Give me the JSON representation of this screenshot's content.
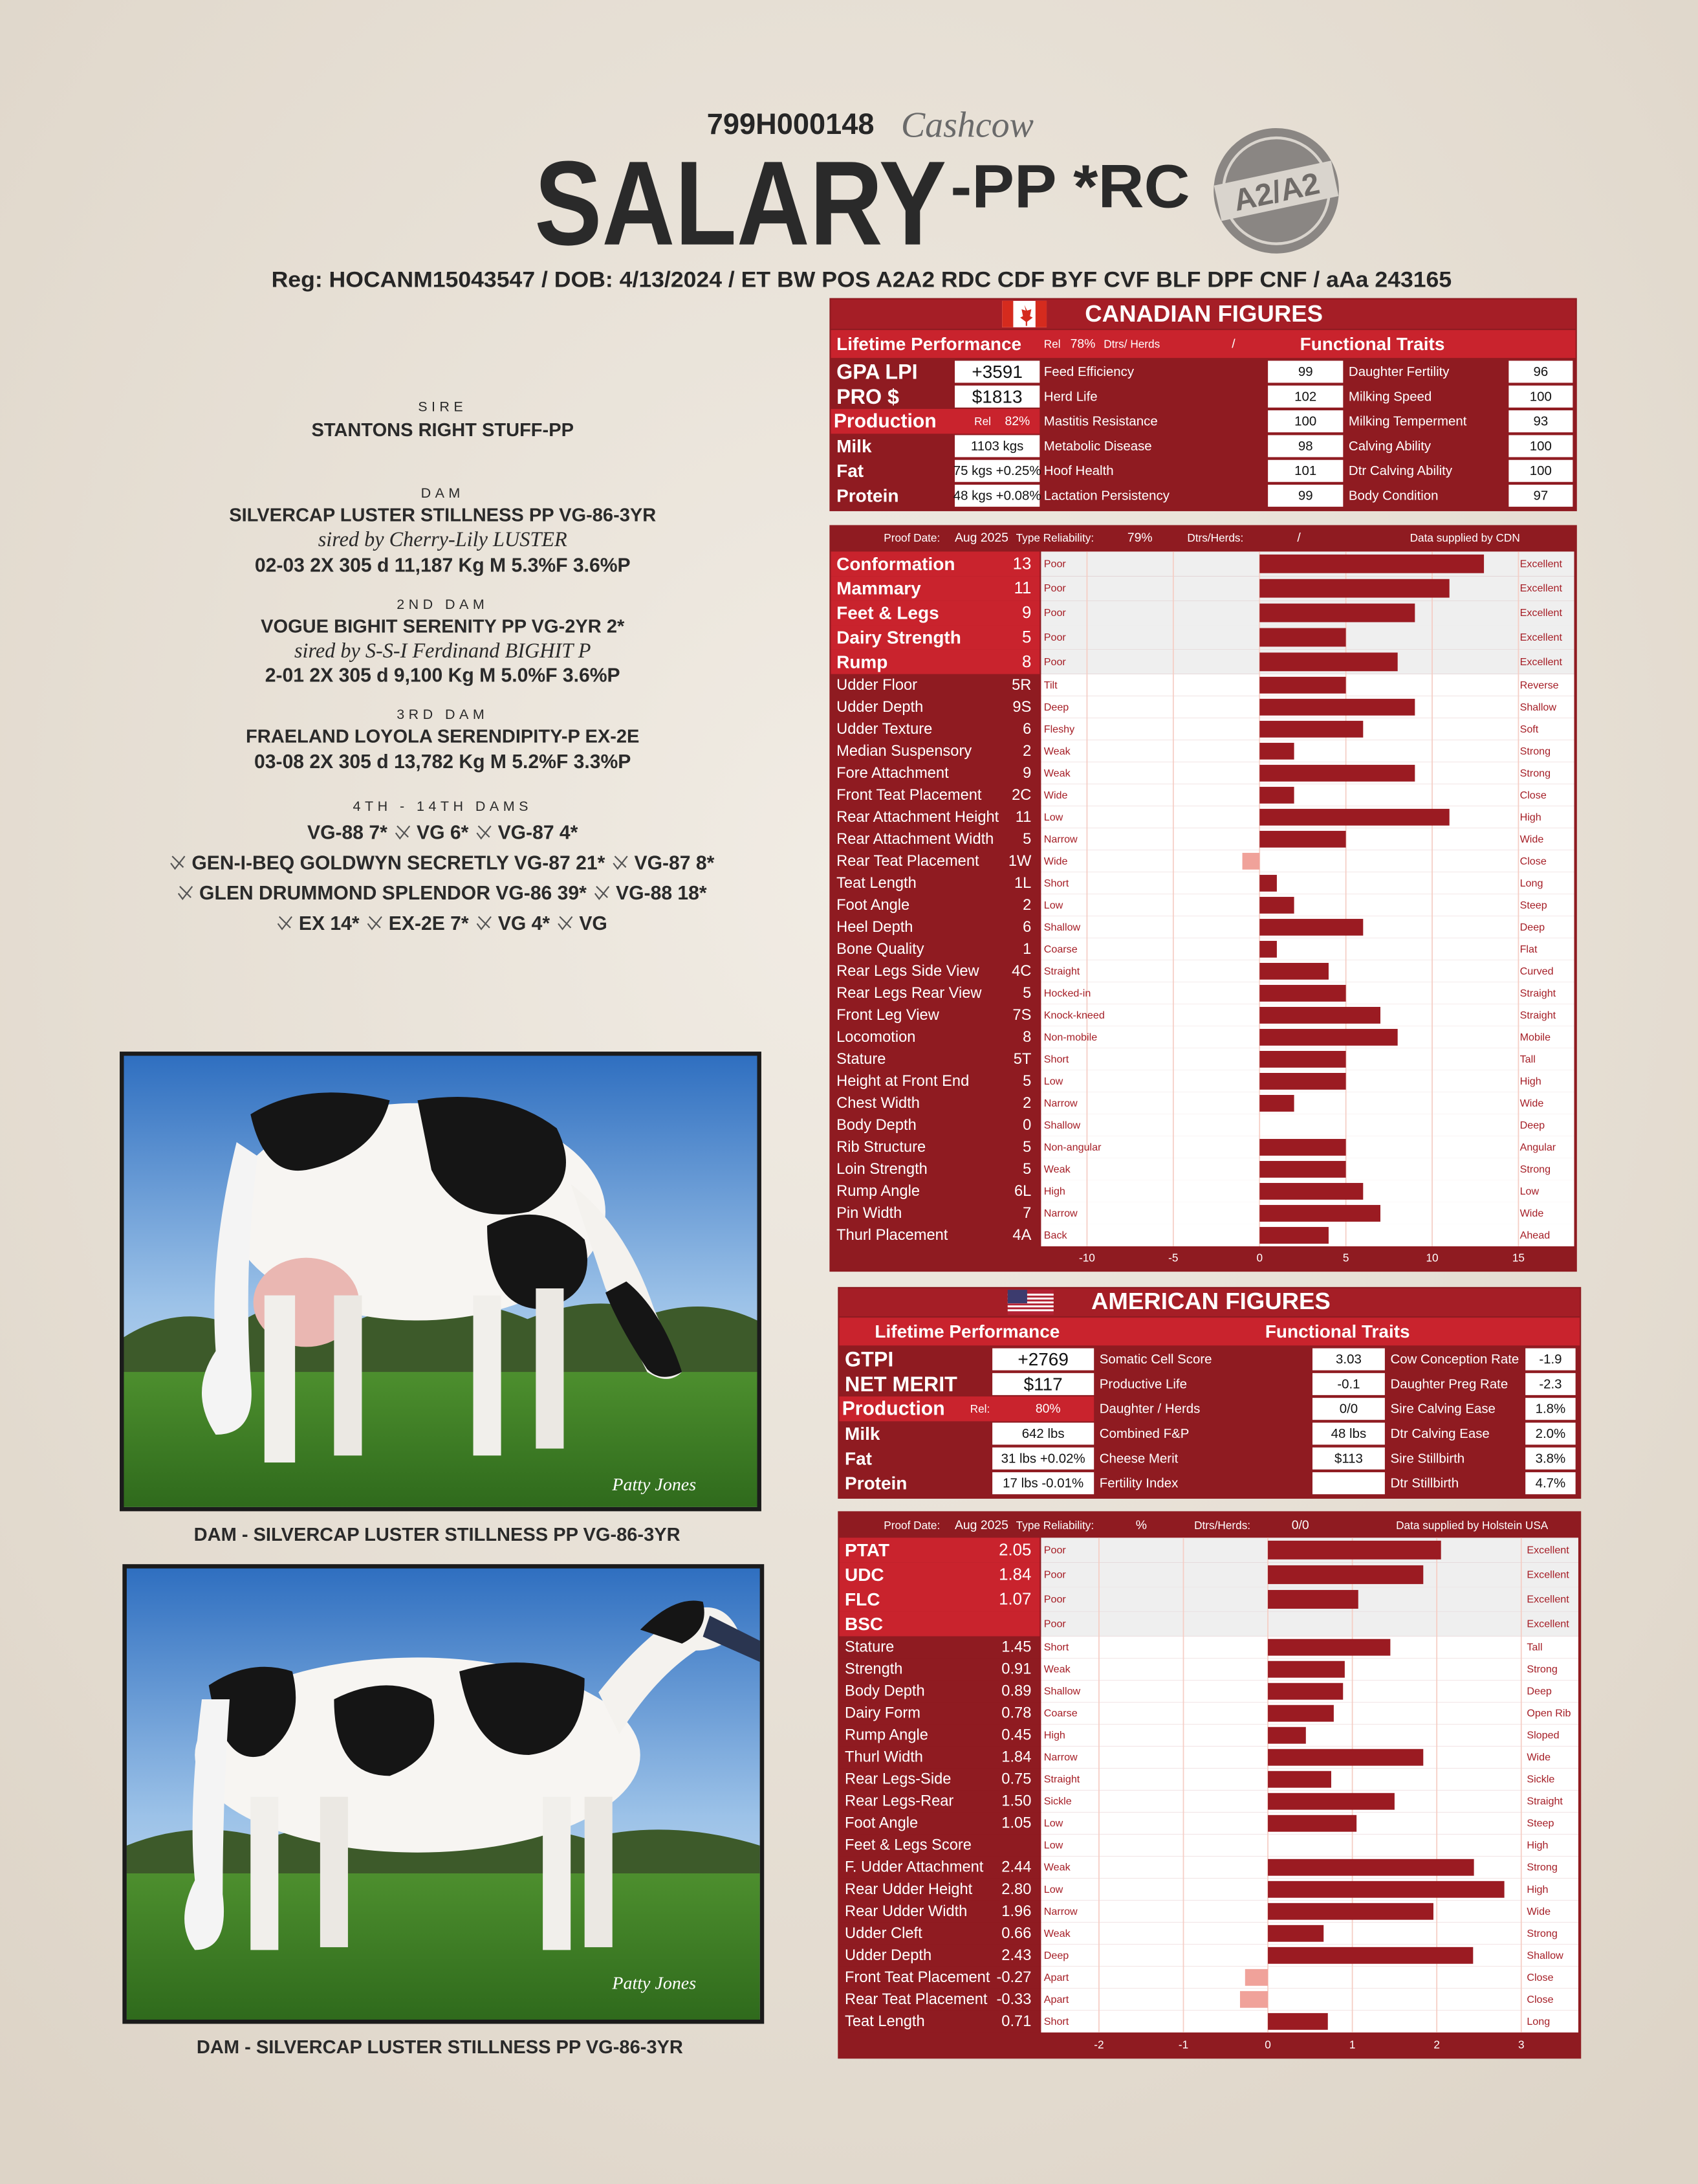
{
  "header": {
    "code": "799H000148",
    "prefix": "Cashcow",
    "name": "SALARY",
    "suffix": "-PP *RC",
    "badge": "A2/A2",
    "info": "Reg: HOCANM15043547 /  DOB: 4/13/2024  / ET BW POS A2A2 RDC CDF BYF CVF BLF DPF CNF  /  aAa 243165"
  },
  "pedigree": {
    "sire": {
      "label": "SIRE",
      "name": "STANTONS RIGHT STUFF-PP"
    },
    "dam": {
      "label": "DAM",
      "name": "SILVERCAP LUSTER STILLNESS PP VG-86-3YR",
      "sired_by": "sired by Cherry-Lily LUSTER",
      "record": "02-03 2X 305 d 11,187 Kg M 5.3%F 3.6%P"
    },
    "dam2": {
      "label": "2ND DAM",
      "name": "VOGUE BIGHIT SERENITY PP VG-2YR 2*",
      "sired_by": "sired by S-S-I Ferdinand BIGHIT P",
      "record": "2-01 2X 305 d 9,100 Kg M 5.0%F 3.6%P"
    },
    "dam3": {
      "label": "3RD DAM",
      "name": "FRAELAND LOYOLA SERENDIPITY-P EX-2E",
      "record": "03-08 2X 305 d 13,782 Kg M 5.2%F 3.3%P"
    },
    "dams": {
      "label": "4TH - 14TH DAMS",
      "lines": [
        [
          "VG-88 7*",
          "VG 6*",
          "VG-87 4*"
        ],
        [
          "GEN-I-BEQ GOLDWYN SECRETLY VG-87 21*",
          "VG-87 8*"
        ],
        [
          "GLEN DRUMMOND SPLENDOR VG-86 39*",
          "VG-88 18*"
        ],
        [
          "EX 14*",
          "EX-2E 7*",
          "VG 4*",
          "VG"
        ]
      ]
    }
  },
  "photos": [
    {
      "caption": "DAM - SILVERCAP LUSTER STILLNESS PP VG-86-3YR",
      "signature": "Patty Jones"
    },
    {
      "caption": "DAM - SILVERCAP LUSTER STILLNESS PP VG-86-3YR",
      "signature": "Patty Jones"
    }
  ],
  "canadian": {
    "title": "CANADIAN FIGURES",
    "lifetime": {
      "title": "Lifetime Performance",
      "rel_label": "Rel",
      "rel": "78%",
      "dtrs_label": "Dtrs/ Herds",
      "dtrs": "/"
    },
    "functional_title": "Functional Traits",
    "indexes": [
      {
        "label": "GPA LPI",
        "value": "+3591"
      },
      {
        "label": "PRO $",
        "value": "$1813"
      }
    ],
    "production": {
      "label": "Production",
      "rel_label": "Rel",
      "rel": "82%"
    },
    "production_rows": [
      {
        "label": "Milk",
        "value": "1103 kgs"
      },
      {
        "label": "Fat",
        "value": "75 kgs +0.25%"
      },
      {
        "label": "Protein",
        "value": "48 kgs +0.08%"
      }
    ],
    "functional_left": [
      {
        "label": "Feed Efficiency",
        "value": 99
      },
      {
        "label": "Herd Life",
        "value": 102
      },
      {
        "label": "Mastitis Resistance",
        "value": 100
      },
      {
        "label": "Metabolic Disease",
        "value": 98
      },
      {
        "label": "Hoof Health",
        "value": 101
      },
      {
        "label": "Lactation Persistency",
        "value": 99
      }
    ],
    "functional_right": [
      {
        "label": "Daughter Fertility",
        "value": 96
      },
      {
        "label": "Milking Speed",
        "value": 100
      },
      {
        "label": "Milking Temperment",
        "value": 93
      },
      {
        "label": "Calving Ability",
        "value": 100
      },
      {
        "label": "Dtr Calving Ability",
        "value": 100
      },
      {
        "label": "Body Condition",
        "value": 97
      }
    ],
    "proof": {
      "date_label": "Proof Date:",
      "date": "Aug 2025",
      "rel_label": "Type Reliability:",
      "rel": "79%",
      "dtrs_label": "Dtrs/Herds:",
      "dtrs": "/",
      "source": "Data supplied by CDN"
    }
  },
  "american": {
    "title": "AMERICAN FIGURES",
    "lifetime": {
      "title": "Lifetime Performance"
    },
    "functional_title": "Functional Traits",
    "indexes": [
      {
        "label": "GTPI",
        "value": "+2769"
      },
      {
        "label": "NET MERIT",
        "value": "$117"
      }
    ],
    "production": {
      "label": "Production",
      "rel_label": "Rel:",
      "rel": "80%"
    },
    "production_rows": [
      {
        "label": "Milk",
        "value": "642 lbs"
      },
      {
        "label": "Fat",
        "value": "31 lbs +0.02%"
      },
      {
        "label": "Protein",
        "value": "17 lbs -0.01%"
      }
    ],
    "functional_left": [
      {
        "label": "Somatic Cell Score",
        "value": 3.03
      },
      {
        "label": "Productive Life",
        "value": -0.1
      },
      {
        "label": "Daughter / Herds",
        "value": "0/0"
      },
      {
        "label": "Combined F&P",
        "value": "48 lbs"
      },
      {
        "label": "Cheese Merit",
        "value": "$113"
      },
      {
        "label": "Fertility Index",
        "value": null
      }
    ],
    "functional_right": [
      {
        "label": "Cow Conception Rate",
        "value": -1.9
      },
      {
        "label": "Daughter Preg Rate",
        "value": -2.3
      },
      {
        "label": "Sire Calving Ease",
        "value": "1.8%"
      },
      {
        "label": "Dtr Calving Ease",
        "value": "2.0%"
      },
      {
        "label": "Sire Stillbirth",
        "value": "3.8%"
      },
      {
        "label": "Dtr Stillbirth",
        "value": "4.7%"
      }
    ],
    "proof": {
      "date_label": "Proof Date:",
      "date": "Aug 2025",
      "rel_label": "Type Reliability:",
      "rel": "%",
      "dtrs_label": "Dtrs/Herds:",
      "dtrs": "0/0",
      "source": "Data supplied by Holstein USA"
    }
  },
  "chart_data": [
    {
      "type": "bar",
      "orientation": "horizontal",
      "categories": [
        "Conformation",
        "Mammary",
        "Feet & Legs",
        "Dairy Strength",
        "Rump",
        "Udder Floor",
        "Udder Depth",
        "Udder Texture",
        "Median Suspensory",
        "Fore Attachment",
        "Front Teat Placement",
        "Rear Attachment Height",
        "Rear Attachment Width",
        "Rear Teat Placement",
        "Teat Length",
        "Foot Angle",
        "Heel Depth",
        "Bone Quality",
        "Rear Legs Side View",
        "Rear Legs Rear View",
        "Front Leg View",
        "Locomotion",
        "Stature",
        "Height at Front End",
        "Chest Width",
        "Body Depth",
        "Rib Structure",
        "Loin Strength",
        "Rump Angle",
        "Pin Width",
        "Thurl Placement"
      ],
      "values": [
        13,
        11,
        9,
        5,
        8,
        5,
        9,
        6,
        2,
        9,
        2,
        11,
        5,
        -1,
        1,
        2,
        6,
        1,
        4,
        5,
        7,
        8,
        5,
        5,
        2,
        0,
        5,
        5,
        6,
        7,
        4
      ],
      "value_labels": [
        "13",
        "11",
        "9",
        "5",
        "8",
        "5R",
        "9S",
        "6",
        "2",
        "9",
        "2C",
        "11",
        "5",
        "1W",
        "1L",
        "2",
        "6",
        "1",
        "4C",
        "5",
        "7S",
        "8",
        "5T",
        "5",
        "2",
        "0",
        "5",
        "5",
        "6L",
        "7",
        "4A"
      ],
      "low_labels": [
        "Poor",
        "Poor",
        "Poor",
        "Poor",
        "Poor",
        "Tilt",
        "Deep",
        "Fleshy",
        "Weak",
        "Weak",
        "Wide",
        "Low",
        "Narrow",
        "Wide",
        "Short",
        "Low",
        "Shallow",
        "Coarse",
        "Straight",
        "Hocked-in",
        "Knock-kneed",
        "Non-mobile",
        "Short",
        "Low",
        "Narrow",
        "Shallow",
        "Non-angular",
        "Weak",
        "High",
        "Narrow",
        "Back"
      ],
      "high_labels": [
        "Excellent",
        "Excellent",
        "Excellent",
        "Excellent",
        "Excellent",
        "Reverse",
        "Shallow",
        "Soft",
        "Strong",
        "Strong",
        "Close",
        "High",
        "Wide",
        "Close",
        "Long",
        "Steep",
        "Deep",
        "Flat",
        "Curved",
        "Straight",
        "Straight",
        "Mobile",
        "Tall",
        "High",
        "Wide",
        "Deep",
        "Angular",
        "Strong",
        "Low",
        "Wide",
        "Ahead"
      ],
      "xlim": [
        -10,
        15
      ],
      "xticks": [
        -10,
        -5,
        0,
        5,
        10,
        15
      ],
      "grid": true,
      "color": "#9b1b22",
      "negative_color": "#f0a29a"
    },
    {
      "type": "bar",
      "orientation": "horizontal",
      "categories": [
        "PTAT",
        "UDC",
        "FLC",
        "BSC",
        "Stature",
        "Strength",
        "Body Depth",
        "Dairy Form",
        "Rump Angle",
        "Thurl Width",
        "Rear Legs-Side",
        "Rear Legs-Rear",
        "Foot Angle",
        "Feet & Legs Score",
        "F. Udder Attachment",
        "Rear Udder Height",
        "Rear Udder Width",
        "Udder Cleft",
        "Udder Depth",
        "Front Teat Placement",
        "Rear Teat Placement",
        "Teat Length"
      ],
      "values": [
        2.05,
        1.84,
        1.07,
        null,
        1.45,
        0.91,
        0.89,
        0.78,
        0.45,
        1.84,
        0.75,
        1.5,
        1.05,
        null,
        2.44,
        2.8,
        1.96,
        0.66,
        2.43,
        -0.27,
        -0.33,
        0.71
      ],
      "value_labels": [
        "2.05",
        "1.84",
        "1.07",
        null,
        "1.45",
        "0.91",
        "0.89",
        "0.78",
        "0.45",
        "1.84",
        "0.75",
        "1.50",
        "1.05",
        null,
        "2.44",
        "2.80",
        "1.96",
        "0.66",
        "2.43",
        "-0.27",
        "-0.33",
        "0.71"
      ],
      "low_labels": [
        "Poor",
        "Poor",
        "Poor",
        "Poor",
        "Short",
        "Weak",
        "Shallow",
        "Coarse",
        "High",
        "Narrow",
        "Straight",
        "Sickle",
        "Low",
        "Low",
        "Weak",
        "Low",
        "Narrow",
        "Weak",
        "Deep",
        "Apart",
        "Apart",
        "Short"
      ],
      "high_labels": [
        "Excellent",
        "Excellent",
        "Excellent",
        "Excellent",
        "Tall",
        "Strong",
        "Deep",
        "Open Rib",
        "Sloped",
        "Wide",
        "Sickle",
        "Straight",
        "Steep",
        "High",
        "Strong",
        "High",
        "Wide",
        "Strong",
        "Shallow",
        "Close",
        "Close",
        "Long"
      ],
      "xlim": [
        -2,
        3
      ],
      "xticks": [
        -2,
        -1,
        0,
        1,
        2,
        3
      ],
      "grid": true,
      "color": "#9b1b22",
      "negative_color": "#f0a29a"
    }
  ]
}
